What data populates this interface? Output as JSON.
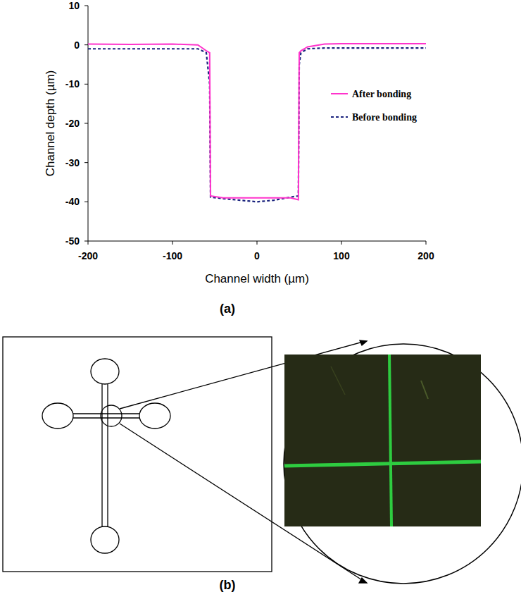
{
  "chart_data": {
    "type": "line",
    "x_label": "Channel width (µm)",
    "y_label": "Channel depth (µm)",
    "x": [
      -200,
      -150,
      -100,
      -70,
      -60,
      -56,
      -55,
      -40,
      -20,
      0,
      20,
      40,
      49,
      50,
      52,
      60,
      80,
      100,
      150,
      200
    ],
    "series": [
      {
        "name": "After bonding",
        "color": "#ff33cc",
        "line_style": "solid",
        "values": [
          0.2,
          0.1,
          0.2,
          0,
          -1.5,
          -2,
          -38.5,
          -39,
          -39,
          -39,
          -39,
          -39,
          -39.5,
          -2,
          -1.5,
          -0.5,
          0.2,
          0.3,
          0.3,
          0.3
        ]
      },
      {
        "name": "Before bonding",
        "color": "#1a237e",
        "line_style": "dashed",
        "values": [
          -1,
          -1,
          -1,
          -1,
          -2,
          -10,
          -38.8,
          -39.2,
          -39.6,
          -40,
          -39.6,
          -38.8,
          -38.5,
          -5,
          -2,
          -1,
          -0.8,
          -0.8,
          -0.8,
          -0.8
        ]
      }
    ],
    "xlim": [
      -200,
      200
    ],
    "ylim": [
      -50,
      10
    ],
    "xticks": [
      -200,
      -100,
      0,
      100,
      200
    ],
    "yticks": [
      10,
      0,
      -10,
      -20,
      -30,
      -40,
      -50
    ],
    "grid": false,
    "legend": "right"
  },
  "figure": {
    "panel_labels": [
      "(a)",
      "(b)"
    ]
  }
}
